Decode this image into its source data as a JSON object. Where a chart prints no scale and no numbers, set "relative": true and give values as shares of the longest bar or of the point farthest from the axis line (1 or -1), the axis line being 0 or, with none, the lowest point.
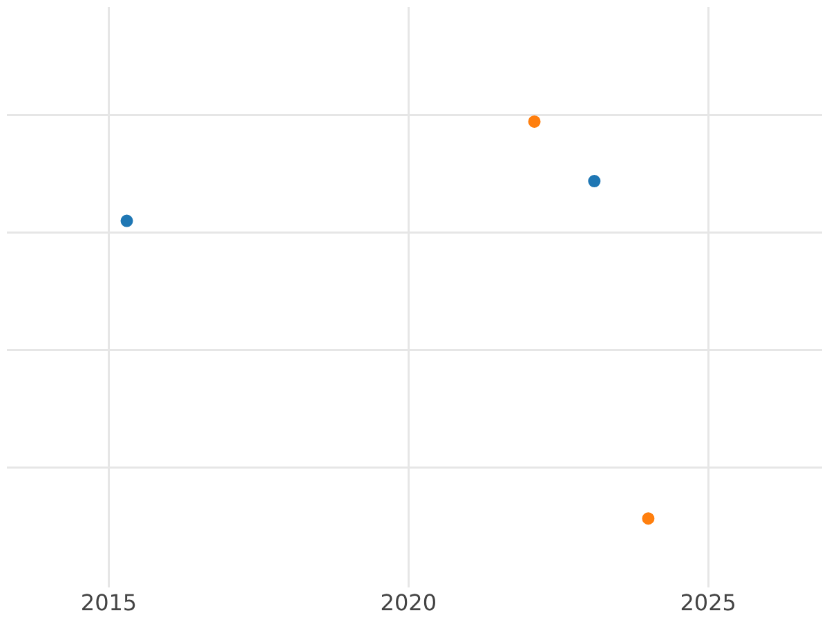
{
  "chart_data": {
    "type": "scatter",
    "relative": true,
    "grid": true,
    "marker": "circle",
    "xlim": [
      2013.3,
      2026.9
    ],
    "xticks": [
      2015,
      2020,
      2025
    ],
    "series": [
      {
        "color": "#1f77b4",
        "x": [
          2015.3,
          2023.1
        ],
        "values": [
          0.75,
          0.85
        ]
      },
      {
        "color": "#ff7f0e",
        "x": [
          2022.1,
          2024.0
        ],
        "values": [
          1,
          0
        ]
      }
    ]
  }
}
